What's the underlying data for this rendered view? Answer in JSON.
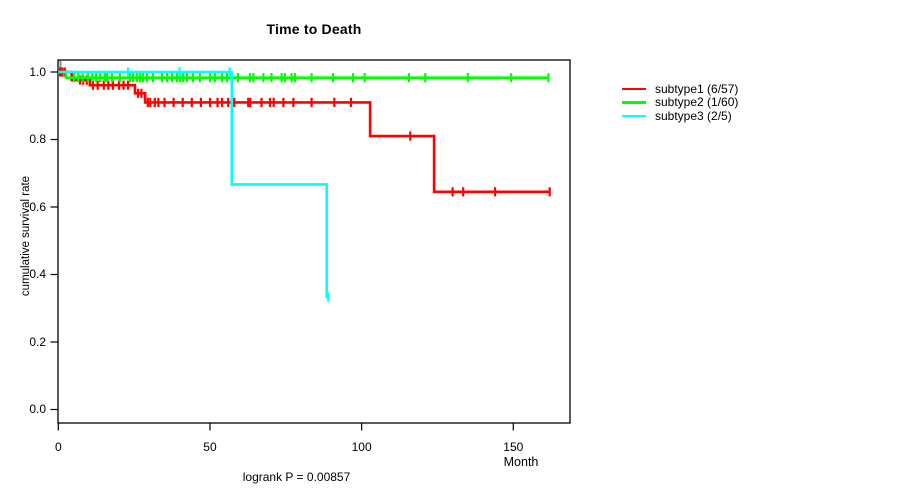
{
  "figure": {
    "title": "Time to Death",
    "x_axis_label": "Month",
    "y_axis_label": "cumulative survival rate",
    "footnote": "logrank P = 0.00857"
  },
  "legend": {
    "position": "right",
    "items": [
      {
        "label": "subtype1 (6/57)",
        "color": "#ff0000"
      },
      {
        "label": "subtype2 (1/60)",
        "color": "#00ff00"
      },
      {
        "label": "subtype3 (2/5)",
        "color": "#00ffff"
      }
    ]
  },
  "chart_data": {
    "type": "line",
    "subtype": "kaplan_meier_step",
    "title": "Time to Death",
    "xlabel": "Month",
    "ylabel": "cumulative survival rate",
    "xlim": [
      0,
      168
    ],
    "ylim": [
      0.0,
      1.0
    ],
    "grid": false,
    "legend_position": "right",
    "annotation": "logrank P = 0.00857",
    "xticks": [
      {
        "value": 0,
        "label": "0"
      },
      {
        "value": 50,
        "label": "50"
      },
      {
        "value": 100,
        "label": "100"
      },
      {
        "value": 150,
        "label": "150"
      }
    ],
    "yticks": [
      {
        "value": 0.0,
        "label": "0.0"
      },
      {
        "value": 0.2,
        "label": "0.2"
      },
      {
        "value": 0.4,
        "label": "0.4"
      },
      {
        "value": 0.6,
        "label": "0.6"
      },
      {
        "value": 0.8,
        "label": "0.8"
      },
      {
        "value": 1.0,
        "label": "1.0"
      }
    ],
    "series": [
      {
        "name": "subtype1 (6/57)",
        "color": "#ff0000",
        "steps": [
          [
            0,
            1.0
          ],
          [
            4.4,
            0.976
          ],
          [
            10.4,
            0.961
          ],
          [
            25.3,
            0.937
          ],
          [
            28.6,
            0.91
          ],
          [
            102.8,
            0.81
          ],
          [
            123.9,
            0.645
          ]
        ],
        "end_x": 162.3,
        "censor_marks": [
          [
            0.6,
            1.0
          ],
          [
            1.3,
            1.0
          ],
          [
            2.1,
            1.0
          ],
          [
            7.2,
            0.976
          ],
          [
            8.2,
            0.976
          ],
          [
            9.4,
            0.976
          ],
          [
            11.4,
            0.961
          ],
          [
            13,
            0.961
          ],
          [
            15,
            0.961
          ],
          [
            16.5,
            0.961
          ],
          [
            18,
            0.961
          ],
          [
            20,
            0.961
          ],
          [
            21.5,
            0.961
          ],
          [
            23,
            0.961
          ],
          [
            26.3,
            0.937
          ],
          [
            27.4,
            0.937
          ],
          [
            29.5,
            0.91
          ],
          [
            30.3,
            0.91
          ],
          [
            31.8,
            0.91
          ],
          [
            33,
            0.91
          ],
          [
            35,
            0.91
          ],
          [
            38,
            0.91
          ],
          [
            41,
            0.91
          ],
          [
            44,
            0.91
          ],
          [
            47,
            0.91
          ],
          [
            50,
            0.91
          ],
          [
            52.5,
            0.91
          ],
          [
            54,
            0.91
          ],
          [
            56,
            0.91
          ],
          [
            58,
            0.91
          ],
          [
            62.6,
            0.91
          ],
          [
            63.3,
            0.91
          ],
          [
            67,
            0.91
          ],
          [
            69.8,
            0.91
          ],
          [
            71,
            0.91
          ],
          [
            74.2,
            0.91
          ],
          [
            77.5,
            0.91
          ],
          [
            83.5,
            0.91
          ],
          [
            91,
            0.91
          ],
          [
            96.5,
            0.91
          ],
          [
            116,
            0.81
          ],
          [
            130,
            0.645
          ],
          [
            133.5,
            0.645
          ],
          [
            144,
            0.645
          ],
          [
            162,
            0.645
          ]
        ]
      },
      {
        "name": "subtype2 (1/60)",
        "color": "#00ff00",
        "steps": [
          [
            0,
            1.0
          ],
          [
            2.5,
            0.983
          ]
        ],
        "end_x": 161.8,
        "censor_marks": [
          [
            5.2,
            0.983
          ],
          [
            6.6,
            0.983
          ],
          [
            8,
            0.983
          ],
          [
            9.8,
            0.983
          ],
          [
            11.2,
            0.983
          ],
          [
            12.5,
            0.983
          ],
          [
            13.8,
            0.983
          ],
          [
            15.4,
            0.983
          ],
          [
            16.1,
            0.983
          ],
          [
            17.7,
            0.983
          ],
          [
            20.3,
            0.983
          ],
          [
            23.6,
            0.983
          ],
          [
            24.6,
            0.983
          ],
          [
            25.9,
            0.983
          ],
          [
            26.9,
            0.983
          ],
          [
            27.9,
            0.983
          ],
          [
            29.2,
            0.983
          ],
          [
            31.2,
            0.983
          ],
          [
            34.2,
            0.983
          ],
          [
            35.8,
            0.983
          ],
          [
            37.5,
            0.983
          ],
          [
            39.1,
            0.983
          ],
          [
            40.1,
            0.983
          ],
          [
            41.1,
            0.983
          ],
          [
            42.4,
            0.983
          ],
          [
            44.4,
            0.983
          ],
          [
            46.7,
            0.983
          ],
          [
            50,
            0.983
          ],
          [
            51.7,
            0.983
          ],
          [
            54,
            0.983
          ],
          [
            55.6,
            0.983
          ],
          [
            59.2,
            0.983
          ],
          [
            63.2,
            0.983
          ],
          [
            64.3,
            0.983
          ],
          [
            67.6,
            0.983
          ],
          [
            70.3,
            0.983
          ],
          [
            73.6,
            0.983
          ],
          [
            74.7,
            0.983
          ],
          [
            76.9,
            0.983
          ],
          [
            78,
            0.983
          ],
          [
            83.5,
            0.983
          ],
          [
            90.6,
            0.983
          ],
          [
            97.2,
            0.983
          ],
          [
            101,
            0.983
          ],
          [
            115.6,
            0.983
          ],
          [
            121,
            0.983
          ],
          [
            135,
            0.983
          ],
          [
            149.3,
            0.983
          ],
          [
            161.6,
            0.983
          ]
        ]
      },
      {
        "name": "subtype3 (2/5)",
        "color": "#00ffff",
        "steps": [
          [
            0,
            1.0
          ],
          [
            57.2,
            0.667
          ],
          [
            88.5,
            0.333
          ]
        ],
        "end_x": 89.3,
        "censor_marks": [
          [
            23,
            1.0
          ],
          [
            40,
            1.0
          ],
          [
            56.5,
            1.0
          ],
          [
            89,
            0.333
          ]
        ]
      }
    ]
  }
}
